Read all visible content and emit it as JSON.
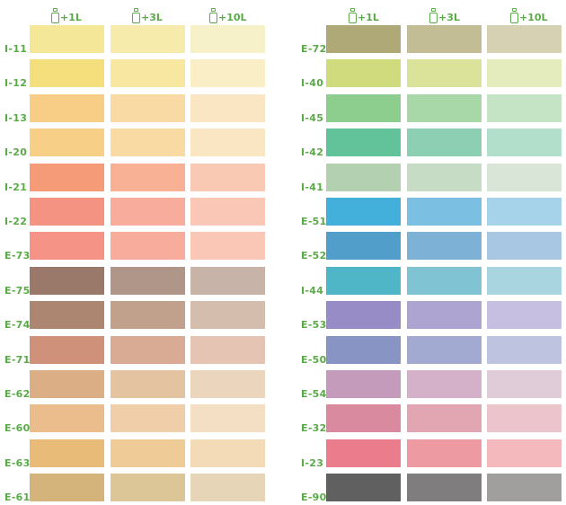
{
  "chart_data": {
    "type": "table",
    "columns": [
      "+1L",
      "+3L",
      "+10L"
    ],
    "column_icon": "bottle-icon",
    "label_color": "#5aaa48",
    "panels": [
      {
        "rows": [
          {
            "code": "I-11",
            "colors": [
              "#f4e797",
              "#f6ebaa",
              "#f6f1c8"
            ]
          },
          {
            "code": "I-12",
            "colors": [
              "#f5df7c",
              "#f8e7a0",
              "#f9eec5"
            ]
          },
          {
            "code": "I-13",
            "colors": [
              "#f8cd85",
              "#f9d9a4",
              "#fbe6c4"
            ]
          },
          {
            "code": "I-20",
            "colors": [
              "#f8cf86",
              "#f9daa3",
              "#fbe6c4"
            ]
          },
          {
            "code": "I-21",
            "colors": [
              "#f59b78",
              "#f8b194",
              "#fac9b3"
            ]
          },
          {
            "code": "I-22",
            "colors": [
              "#f59383",
              "#f8ac9b",
              "#fac7b7"
            ]
          },
          {
            "code": "E-73",
            "colors": [
              "#f59486",
              "#f8ac9c",
              "#fac7b7"
            ]
          },
          {
            "code": "E-75",
            "colors": [
              "#9a786a",
              "#b09589",
              "#c8b3a9"
            ]
          },
          {
            "code": "E-74",
            "colors": [
              "#ac8670",
              "#c2a18c",
              "#d5bdad"
            ]
          },
          {
            "code": "E-71",
            "colors": [
              "#cf917a",
              "#d9aa94",
              "#e5c4b3"
            ]
          },
          {
            "code": "E-62",
            "colors": [
              "#dcae85",
              "#e4c3a0",
              "#ecd5bd"
            ]
          },
          {
            "code": "E-60",
            "colors": [
              "#ebbd8c",
              "#f0ceaa",
              "#f4dec4"
            ]
          },
          {
            "code": "E-63",
            "colors": [
              "#e9bb79",
              "#efcb97",
              "#f3dbb8"
            ]
          },
          {
            "code": "E-61",
            "colors": [
              "#d4b47a",
              "#dcc597",
              "#e6d6b7"
            ]
          }
        ]
      },
      {
        "rows": [
          {
            "code": "E-72",
            "colors": [
              "#afa977",
              "#c3bd95",
              "#d6d1b3"
            ]
          },
          {
            "code": "I-40",
            "colors": [
              "#cfdb7c",
              "#dbe39b",
              "#e4ebbc"
            ]
          },
          {
            "code": "I-45",
            "colors": [
              "#8dcd8e",
              "#a9d8a8",
              "#c5e4c6"
            ]
          },
          {
            "code": "I-42",
            "colors": [
              "#62c39b",
              "#8ccfb3",
              "#b1dfcc"
            ]
          },
          {
            "code": "I-41",
            "colors": [
              "#b3d1b1",
              "#c7dcc4",
              "#d9e5d7"
            ]
          },
          {
            "code": "E-51",
            "colors": [
              "#42b0da",
              "#7bc0e2",
              "#a7d3ea"
            ]
          },
          {
            "code": "E-52",
            "colors": [
              "#519ecb",
              "#7eb1d6",
              "#a7c7e2"
            ]
          },
          {
            "code": "I-44",
            "colors": [
              "#4fb6c8",
              "#80c4d3",
              "#a8d5df"
            ]
          },
          {
            "code": "E-53",
            "colors": [
              "#978cc6",
              "#aea4d2",
              "#c6bfe1"
            ]
          },
          {
            "code": "E-50",
            "colors": [
              "#8794c4",
              "#a3aad1",
              "#bec3e0"
            ]
          },
          {
            "code": "E-54",
            "colors": [
              "#c59bbb",
              "#d4b1c9",
              "#e0cbd9"
            ]
          },
          {
            "code": "E-32",
            "colors": [
              "#d98a9e",
              "#e2a5b2",
              "#ecc4cb"
            ]
          },
          {
            "code": "I-23",
            "colors": [
              "#ea7c8b",
              "#ee9aa2",
              "#f4b9bd"
            ]
          },
          {
            "code": "E-90",
            "colors": [
              "#606061",
              "#807d7e",
              "#a19e9e"
            ]
          }
        ]
      }
    ]
  }
}
